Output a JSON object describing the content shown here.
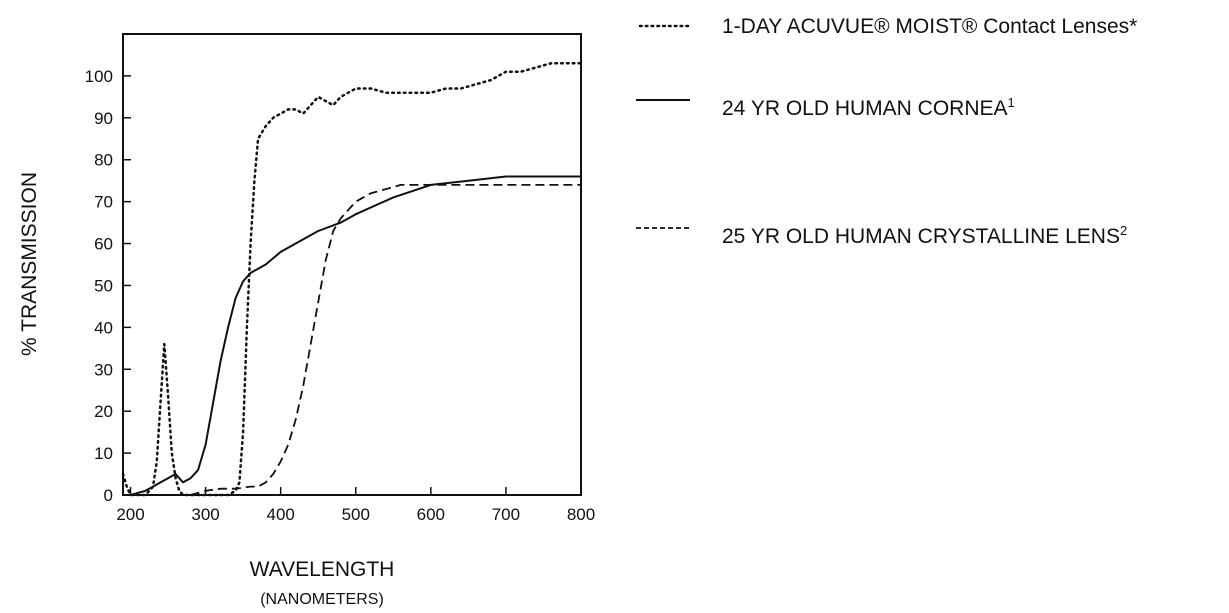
{
  "chart_data": {
    "type": "line",
    "xlabel": "WAVELENGTH",
    "xlabel_sub": "(NANOMETERS)",
    "ylabel": "% TRANSMISSION",
    "xlim": [
      190,
      800
    ],
    "ylim": [
      0,
      110
    ],
    "x_ticks": [
      200,
      300,
      400,
      500,
      600,
      700,
      800
    ],
    "y_ticks": [
      0,
      10,
      20,
      30,
      40,
      50,
      60,
      70,
      80,
      90,
      100
    ],
    "grid": false,
    "legend_position": "right",
    "series": [
      {
        "name": "1-DAY ACUVUE® MOIST® Contact Lenses*",
        "legend_main": "1-DAY ACUVUE® MOIST® Contact Lenses",
        "legend_sup": "*",
        "style": "dotted",
        "x": [
          190,
          195,
          200,
          205,
          210,
          220,
          230,
          235,
          240,
          245,
          250,
          255,
          260,
          265,
          270,
          275,
          280,
          290,
          300,
          310,
          320,
          330,
          340,
          345,
          350,
          355,
          360,
          365,
          370,
          380,
          390,
          400,
          410,
          420,
          430,
          440,
          450,
          460,
          470,
          480,
          490,
          500,
          510,
          520,
          540,
          560,
          580,
          600,
          620,
          640,
          660,
          680,
          700,
          720,
          740,
          760,
          780,
          800
        ],
        "y": [
          5,
          2,
          0,
          0,
          0,
          0,
          2,
          8,
          22,
          36,
          24,
          10,
          4,
          1,
          0,
          0,
          0,
          0,
          0,
          0,
          0,
          0,
          1,
          3,
          15,
          40,
          60,
          75,
          85,
          88,
          90,
          91,
          92,
          92,
          91,
          93,
          95,
          94,
          93,
          95,
          96,
          97,
          97,
          97,
          96,
          96,
          96,
          96,
          97,
          97,
          98,
          99,
          101,
          101,
          102,
          103,
          103,
          103
        ]
      },
      {
        "name": "24 YR OLD HUMAN CORNEA¹",
        "legend_main": "24 YR OLD HUMAN CORNEA",
        "legend_sup": "1",
        "style": "solid",
        "x": [
          200,
          210,
          220,
          230,
          240,
          250,
          255,
          260,
          265,
          270,
          275,
          280,
          290,
          300,
          310,
          320,
          330,
          340,
          350,
          360,
          370,
          380,
          400,
          420,
          450,
          480,
          500,
          550,
          600,
          650,
          700,
          750,
          800
        ],
        "y": [
          0,
          0.5,
          1,
          2,
          3,
          4,
          4.5,
          5,
          4,
          3,
          3.5,
          4,
          6,
          12,
          22,
          32,
          40,
          47,
          51,
          53,
          54,
          55,
          58,
          60,
          63,
          65,
          67,
          71,
          74,
          75,
          76,
          76,
          76
        ]
      },
      {
        "name": "25 YR OLD HUMAN CRYSTALLINE LENS²",
        "legend_main": "25 YR OLD HUMAN CRYSTALLINE LENS",
        "legend_sup": "2",
        "style": "dashed",
        "x": [
          280,
          290,
          300,
          320,
          340,
          360,
          370,
          380,
          390,
          400,
          410,
          420,
          430,
          440,
          450,
          460,
          470,
          480,
          500,
          520,
          540,
          560,
          580,
          600,
          620,
          650,
          700,
          750,
          800
        ],
        "y": [
          0,
          0.5,
          1,
          1.5,
          1.5,
          2,
          2,
          3,
          5,
          8,
          12,
          18,
          26,
          36,
          46,
          56,
          63,
          66,
          70,
          72,
          73,
          74,
          74,
          74,
          74,
          74,
          74,
          74,
          74
        ]
      }
    ]
  }
}
